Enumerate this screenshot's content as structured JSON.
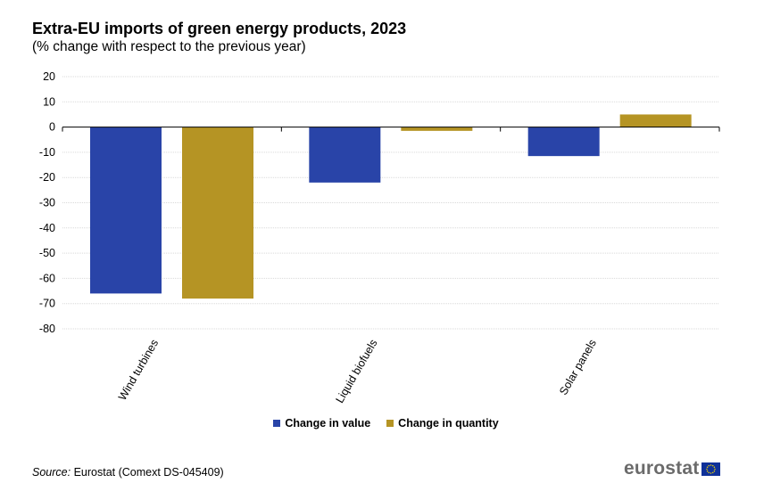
{
  "title": "Extra-EU imports of green energy products, 2023",
  "subtitle": "(% change with respect to the previous year)",
  "source": {
    "label": "Source:",
    "text": " Eurostat (Comext DS-045409)"
  },
  "logo": {
    "text": "eurostat"
  },
  "colors": {
    "value": "#2944a8",
    "quantity": "#b59424",
    "flag": "#0f3199",
    "star": "#f5d800"
  },
  "chart_data": {
    "type": "bar",
    "categories": [
      "Wind turbines",
      "Liquid biofuels",
      "Solar panels"
    ],
    "series": [
      {
        "name": "Change in value",
        "values": [
          -66,
          -22,
          -11.5
        ]
      },
      {
        "name": "Change in quantity",
        "values": [
          -68,
          -1.5,
          5
        ]
      }
    ],
    "ylim": [
      -80,
      20
    ],
    "yticks": [
      20,
      10,
      0,
      -10,
      -20,
      -30,
      -40,
      -50,
      -60,
      -70,
      -80
    ],
    "grid": true,
    "legend_position": "bottom"
  }
}
